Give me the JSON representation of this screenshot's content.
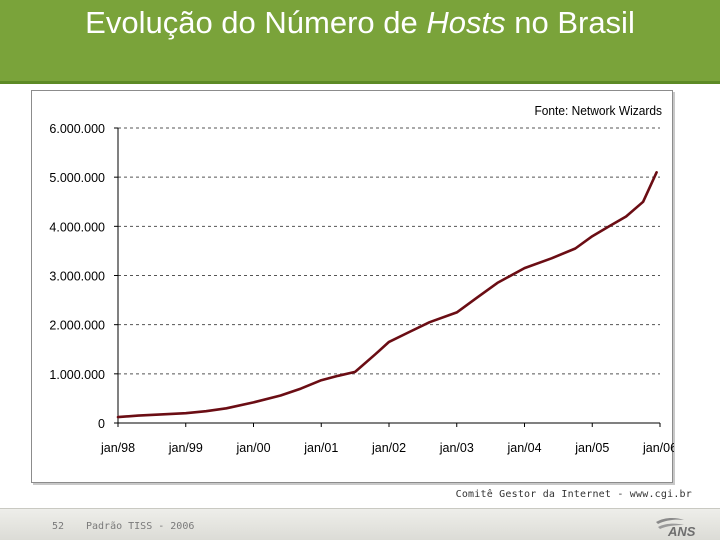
{
  "slide": {
    "title_part1": "Evolução do Número de ",
    "title_emph": "Hosts",
    "title_part2": " no Brasil",
    "credit": "Comitê Gestor da Internet - www.cgi.br"
  },
  "footer": {
    "page_number": "52",
    "text": "Padrão TISS - 2006",
    "logo_text": "ANS"
  },
  "colors": {
    "title_bg": "#7aa33a",
    "line": "#6b0d14",
    "grid": "#555555"
  },
  "chart_data": {
    "type": "line",
    "title": "",
    "annotation": "Fonte: Network Wizards",
    "xlabel": "",
    "ylabel": "",
    "ylim": [
      0,
      6000000
    ],
    "yticks": [
      0,
      1000000,
      2000000,
      3000000,
      4000000,
      5000000,
      6000000
    ],
    "ytick_labels": [
      "0",
      "1.000.000",
      "2.000.000",
      "3.000.000",
      "4.000.000",
      "5.000.000",
      "6.000.000"
    ],
    "xlim": [
      1998.0,
      2006.0
    ],
    "xticks": [
      1998,
      1999,
      2000,
      2001,
      2002,
      2003,
      2004,
      2005,
      2006
    ],
    "xtick_labels": [
      "jan/98",
      "jan/99",
      "jan/00",
      "jan/01",
      "jan/02",
      "jan/03",
      "jan/04",
      "jan/05",
      "jan/06"
    ],
    "grid": "horizontal dashed",
    "legend": "none",
    "series": [
      {
        "x": [
          1998.0,
          1998.3,
          1998.6,
          1999.0,
          1999.3,
          1999.6,
          2000.0,
          2000.4,
          2000.7,
          2001.0,
          2001.25,
          2001.5,
          2001.8,
          2002.0,
          2002.3,
          2002.6,
          2003.0,
          2003.3,
          2003.6,
          2004.0,
          2004.4,
          2004.75,
          2005.0,
          2005.25,
          2005.5,
          2005.75,
          2005.95
        ],
        "values": [
          120000,
          150000,
          170000,
          200000,
          240000,
          300000,
          420000,
          560000,
          700000,
          870000,
          960000,
          1040000,
          1400000,
          1650000,
          1850000,
          2050000,
          2250000,
          2550000,
          2850000,
          3150000,
          3350000,
          3550000,
          3800000,
          4000000,
          4200000,
          4500000,
          5100000
        ]
      }
    ]
  }
}
